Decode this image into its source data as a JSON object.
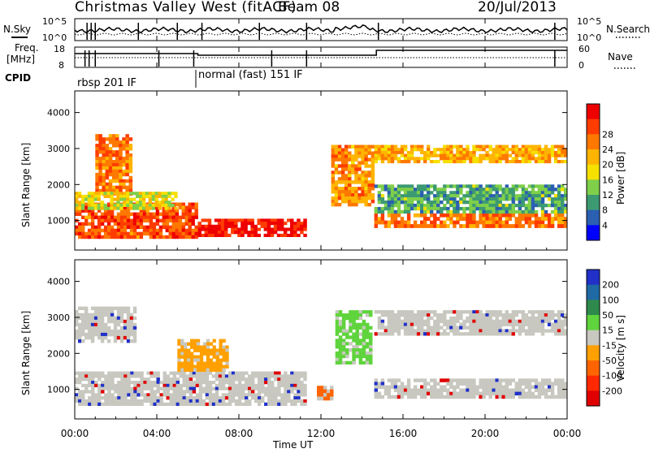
{
  "header": {
    "title": "Christmas Valley West (fitACF)",
    "beam": "Beam 08",
    "date": "20/Jul/2013"
  },
  "nsky_panel": {
    "left_label": "N.Sky",
    "right_label": "N.Search",
    "left_ticks": [
      "10^5",
      "10^0"
    ],
    "right_ticks": [
      "10^5",
      "10^0"
    ]
  },
  "freq_panel": {
    "left_label_1": "Freq.",
    "left_label_2": "[MHz]",
    "right_label": "Nave",
    "left_ticks": [
      "18",
      "8"
    ],
    "right_ticks": [
      "60",
      "0"
    ]
  },
  "cpid": {
    "label": "CPID",
    "segments": [
      {
        "name": "rbsp 201 IF",
        "start_h": 0,
        "end_h": 6.0
      },
      {
        "name": "normal (fast) 151 IF",
        "start_h": 6.0,
        "end_h": 24
      }
    ]
  },
  "colors": {
    "power_scale": [
      "#0000ff",
      "#2b5fb2",
      "#3c9a72",
      "#7fcf4a",
      "#f5e000",
      "#ffb400",
      "#ff7800",
      "#ff3c00",
      "#ee0000"
    ],
    "velocity_scale": [
      "#2030c8",
      "#1f6aa5",
      "#2e8a4c",
      "#5fd43c",
      "#c8c8c0",
      "#ffa000",
      "#ff6400",
      "#ff2800",
      "#e00000"
    ]
  },
  "chart_data": [
    {
      "type": "heatmap",
      "name": "power",
      "ylabel": "Slant Range [km]",
      "xlabel": "Time UT",
      "xlim": [
        0,
        24
      ],
      "ylim": [
        180,
        4600
      ],
      "x_ticks": [
        "00:00",
        "04:00",
        "08:00",
        "12:00",
        "16:00",
        "20:00",
        "00:00"
      ],
      "y_ticks": [
        1000,
        2000,
        3000,
        4000
      ],
      "colorbar": {
        "label": "Power [dB]",
        "ticks": [
          4,
          8,
          12,
          16,
          20,
          24,
          28
        ],
        "range": [
          0,
          30
        ]
      },
      "bands": [
        {
          "t0": 0.0,
          "t1": 6.0,
          "r0": 500,
          "r1": 1500,
          "value": 24
        },
        {
          "t0": 6.0,
          "t1": 11.3,
          "r0": 550,
          "r1": 1050,
          "value": 28
        },
        {
          "t0": 1.0,
          "t1": 2.8,
          "r0": 1700,
          "r1": 3400,
          "value": 22
        },
        {
          "t0": 0.0,
          "t1": 5.0,
          "r0": 1300,
          "r1": 1800,
          "value": 14
        },
        {
          "t0": 12.5,
          "t1": 14.6,
          "r0": 1400,
          "r1": 3100,
          "value": 20
        },
        {
          "t0": 14.6,
          "t1": 24.0,
          "r0": 800,
          "r1": 1200,
          "value": 22
        },
        {
          "t0": 14.6,
          "t1": 24.0,
          "r0": 1200,
          "r1": 2000,
          "value": 8
        },
        {
          "t0": 14.6,
          "t1": 24.0,
          "r0": 2600,
          "r1": 3100,
          "value": 18
        }
      ]
    },
    {
      "type": "heatmap",
      "name": "velocity",
      "ylabel": "Slant Range [km]",
      "xlabel": "Time UT",
      "xlim": [
        0,
        24
      ],
      "ylim": [
        180,
        4600
      ],
      "x_ticks": [
        "00:00",
        "04:00",
        "08:00",
        "12:00",
        "16:00",
        "20:00",
        "00:00"
      ],
      "y_ticks": [
        1000,
        2000,
        3000,
        4000
      ],
      "colorbar": {
        "label": "Velocity [m s^-1]",
        "ticks": [
          "200",
          "100",
          "50",
          "15",
          "-15",
          "-50",
          "-100",
          "-200"
        ]
      },
      "bands": [
        {
          "t0": 0.0,
          "t1": 11.3,
          "r0": 550,
          "r1": 1500,
          "value": 0
        },
        {
          "t0": 0.0,
          "t1": 3.0,
          "r0": 2300,
          "r1": 3300,
          "value": 0
        },
        {
          "t0": 5.0,
          "t1": 7.5,
          "r0": 1500,
          "r1": 2400,
          "value": -60
        },
        {
          "t0": 12.7,
          "t1": 14.5,
          "r0": 1700,
          "r1": 3200,
          "value": 40
        },
        {
          "t0": 11.8,
          "t1": 12.6,
          "r0": 700,
          "r1": 1100,
          "value": -110
        },
        {
          "t0": 14.6,
          "t1": 24.0,
          "r0": 750,
          "r1": 1300,
          "value": 0
        },
        {
          "t0": 14.6,
          "t1": 24.0,
          "r0": 2500,
          "r1": 3200,
          "value": 0
        }
      ]
    }
  ]
}
